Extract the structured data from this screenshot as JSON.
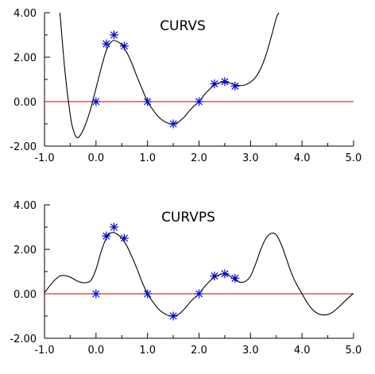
{
  "chart_data": [
    {
      "type": "line",
      "title": "CURVS",
      "xlim": [
        -1.0,
        5.0
      ],
      "ylim": [
        -2.0,
        4.0
      ],
      "x_ticks": [
        "-1.0",
        "0.0",
        "1.0",
        "2.0",
        "3.0",
        "4.0",
        "5.0"
      ],
      "y_ticks": [
        "4.00",
        "2.00",
        "0.00",
        "-2.00"
      ],
      "grid": false,
      "reference_line": {
        "y": 0.0,
        "color": "#cc0000"
      },
      "markers": {
        "symbol": "asterisk",
        "color": "#0000cc",
        "x": [
          0.0,
          0.2,
          0.35,
          0.55,
          1.0,
          1.5,
          2.0,
          2.3,
          2.5,
          2.7
        ],
        "y": [
          0.0,
          2.6,
          3.0,
          2.5,
          0.0,
          -1.0,
          0.0,
          0.8,
          0.9,
          0.7
        ]
      },
      "curve": {
        "color": "#000000",
        "x": [
          -0.7,
          -0.6,
          -0.5,
          -0.45,
          -0.38,
          -0.3,
          -0.2,
          -0.1,
          0.0,
          0.1,
          0.2,
          0.3,
          0.4,
          0.5,
          0.6,
          0.7,
          0.8,
          0.9,
          1.0,
          1.1,
          1.2,
          1.3,
          1.4,
          1.5,
          1.6,
          1.7,
          1.8,
          1.9,
          2.0,
          2.1,
          2.2,
          2.3,
          2.4,
          2.5,
          2.6,
          2.7,
          2.8,
          2.9,
          3.0,
          3.1,
          3.2,
          3.3,
          3.4,
          3.5,
          3.55
        ],
        "y": [
          4.0,
          1.3,
          -0.6,
          -1.2,
          -1.6,
          -1.5,
          -1.0,
          -0.3,
          0.6,
          1.5,
          2.3,
          2.7,
          2.72,
          2.55,
          2.2,
          1.7,
          1.1,
          0.55,
          0.0,
          -0.35,
          -0.65,
          -0.85,
          -0.97,
          -1.0,
          -0.92,
          -0.72,
          -0.45,
          -0.2,
          0.0,
          0.3,
          0.55,
          0.75,
          0.85,
          0.88,
          0.83,
          0.76,
          0.72,
          0.76,
          0.88,
          1.1,
          1.5,
          2.1,
          2.9,
          3.75,
          4.0
        ]
      }
    },
    {
      "type": "line",
      "title": "CURVPS",
      "xlim": [
        -1.0,
        5.0
      ],
      "ylim": [
        -2.0,
        4.0
      ],
      "x_ticks": [
        "-1.0",
        "0.0",
        "1.0",
        "2.0",
        "3.0",
        "4.0",
        "5.0"
      ],
      "y_ticks": [
        "4.00",
        "2.00",
        "0.00",
        "-2.00"
      ],
      "grid": false,
      "reference_line": {
        "y": 0.0,
        "color": "#cc0000"
      },
      "markers": {
        "symbol": "asterisk",
        "color": "#0000cc",
        "x": [
          0.0,
          0.2,
          0.35,
          0.55,
          1.0,
          1.5,
          2.0,
          2.3,
          2.5,
          2.7
        ],
        "y": [
          0.0,
          2.6,
          3.0,
          2.5,
          0.0,
          -1.0,
          0.0,
          0.8,
          0.9,
          0.7
        ]
      },
      "curve": {
        "color": "#000000",
        "x": [
          -1.0,
          -0.9,
          -0.8,
          -0.7,
          -0.6,
          -0.5,
          -0.4,
          -0.3,
          -0.2,
          -0.1,
          0.0,
          0.1,
          0.2,
          0.3,
          0.4,
          0.5,
          0.6,
          0.7,
          0.8,
          0.9,
          1.0,
          1.1,
          1.2,
          1.3,
          1.4,
          1.5,
          1.6,
          1.7,
          1.8,
          1.9,
          2.0,
          2.1,
          2.2,
          2.3,
          2.4,
          2.5,
          2.6,
          2.7,
          2.8,
          2.9,
          3.0,
          3.1,
          3.2,
          3.3,
          3.4,
          3.5,
          3.6,
          3.7,
          3.8,
          3.9,
          4.0,
          4.1,
          4.2,
          4.3,
          4.4,
          4.5,
          4.6,
          4.7,
          4.8,
          4.9,
          5.0
        ],
        "y": [
          0.05,
          0.35,
          0.62,
          0.8,
          0.82,
          0.75,
          0.62,
          0.52,
          0.5,
          0.6,
          1.1,
          1.9,
          2.5,
          2.75,
          2.7,
          2.5,
          2.15,
          1.65,
          1.1,
          0.5,
          0.0,
          -0.35,
          -0.65,
          -0.85,
          -0.97,
          -1.0,
          -0.93,
          -0.72,
          -0.45,
          -0.2,
          0.0,
          0.3,
          0.55,
          0.75,
          0.86,
          0.9,
          0.8,
          0.62,
          0.52,
          0.56,
          0.8,
          1.35,
          2.0,
          2.5,
          2.72,
          2.65,
          2.2,
          1.55,
          0.9,
          0.4,
          0.0,
          -0.4,
          -0.7,
          -0.88,
          -0.95,
          -0.93,
          -0.82,
          -0.62,
          -0.4,
          -0.18,
          0.02
        ]
      }
    }
  ]
}
